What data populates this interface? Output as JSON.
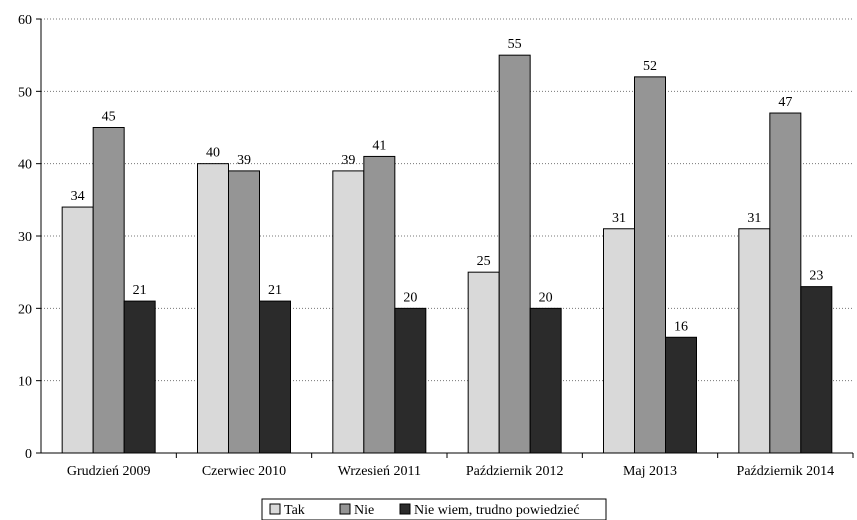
{
  "chart_data": {
    "type": "bar",
    "title": "",
    "xlabel": "",
    "ylabel": "",
    "ylim": [
      0,
      60
    ],
    "yticks": [
      0,
      10,
      20,
      30,
      40,
      50,
      60
    ],
    "grid": "horizontal-dotted",
    "legend_position": "bottom",
    "categories": [
      "Grudzień 2009",
      "Czerwiec 2010",
      "Wrzesień 2011",
      "Październik 2012",
      "Maj 2013",
      "Październik 2014"
    ],
    "series": [
      {
        "name": "Tak",
        "values": [
          34,
          40,
          39,
          25,
          31,
          31
        ],
        "color": "#d9d9d9"
      },
      {
        "name": "Nie",
        "values": [
          45,
          39,
          41,
          55,
          52,
          47
        ],
        "color": "#959595"
      },
      {
        "name": "Nie wiem, trudno powiedzieć",
        "values": [
          21,
          21,
          20,
          20,
          16,
          23
        ],
        "color": "#2b2b2b"
      }
    ]
  }
}
